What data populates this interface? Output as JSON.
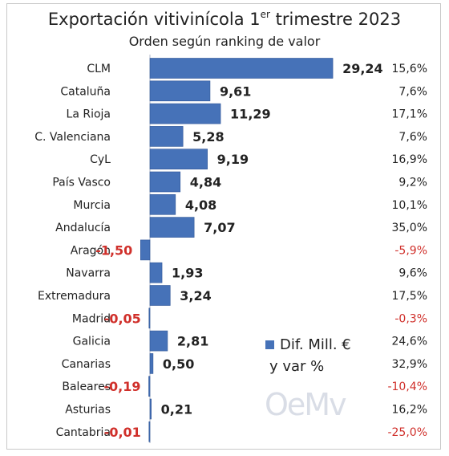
{
  "title_main": "Exportación vitivinícola 1",
  "title_sup": "er",
  "title_end": " trimestre 2023",
  "subtitle": "Orden según ranking de valor",
  "legend": {
    "line1": "Dif. Mill. €",
    "line2": "y var %"
  },
  "watermark": "OeMv",
  "colors": {
    "bar": "#4672b8",
    "negative": "#d0302b",
    "text": "#222222"
  },
  "chart_data": {
    "type": "bar",
    "orientation": "horizontal",
    "categories": [
      "CLM",
      "Cataluña",
      "La Rioja",
      "C. Valenciana",
      "CyL",
      "País Vasco",
      "Murcia",
      "Andalucía",
      "Aragón",
      "Navarra",
      "Extremadura",
      "Madrid",
      "Galicia",
      "Canarias",
      "Baleares",
      "Asturias",
      "Cantabria"
    ],
    "values": [
      29.24,
      9.61,
      11.29,
      5.28,
      9.19,
      4.84,
      4.08,
      7.07,
      -1.5,
      1.93,
      3.24,
      -0.05,
      2.81,
      0.5,
      -0.19,
      0.21,
      -0.01
    ],
    "value_labels": [
      "29,24",
      "9,61",
      "11,29",
      "5,28",
      "9,19",
      "4,84",
      "4,08",
      "7,07",
      "-1,50",
      "1,93",
      "3,24",
      "-0,05",
      "2,81",
      "0,50",
      "-0,19",
      "0,21",
      "-0,01"
    ],
    "pct_labels": [
      "15,6%",
      "7,6%",
      "17,1%",
      "7,6%",
      "16,9%",
      "9,2%",
      "10,1%",
      "35,0%",
      "-5,9%",
      "9,6%",
      "17,5%",
      "-0,3%",
      "24,6%",
      "32,9%",
      "-10,4%",
      "16,2%",
      "-25,0%"
    ],
    "series": [
      {
        "name": "Dif. Mill. €",
        "values": [
          29.24,
          9.61,
          11.29,
          5.28,
          9.19,
          4.84,
          4.08,
          7.07,
          -1.5,
          1.93,
          3.24,
          -0.05,
          2.81,
          0.5,
          -0.19,
          0.21,
          -0.01
        ]
      }
    ],
    "legend_position": "bottom-right",
    "grid": false
  }
}
